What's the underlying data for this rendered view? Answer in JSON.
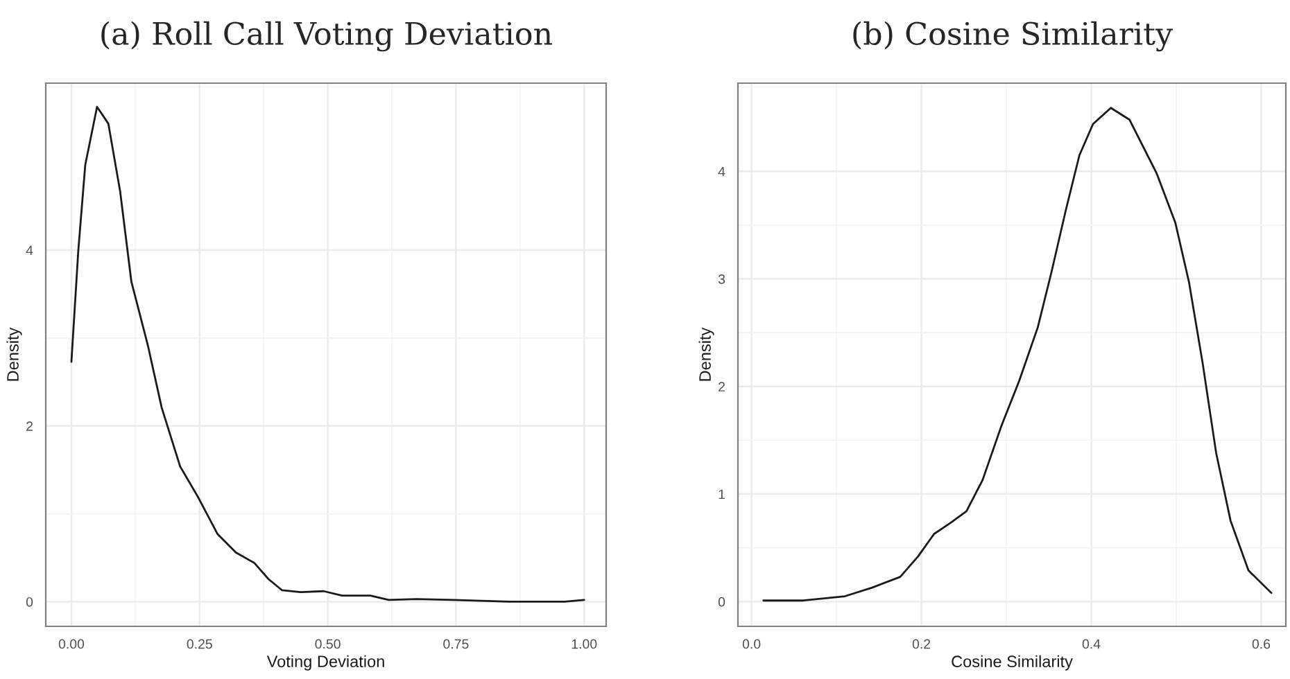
{
  "chart_data": [
    {
      "type": "line",
      "title": "(a) Roll Call Voting Deviation",
      "xlabel": "Voting Deviation",
      "ylabel": "Density",
      "series": [
        {
          "color": "#1a1a1a",
          "x": [
            0,
            0.0135,
            0.027,
            0.05,
            0.072,
            0.095,
            0.117,
            0.149,
            0.176,
            0.212,
            0.248,
            0.285,
            0.321,
            0.357,
            0.384,
            0.411,
            0.447,
            0.492,
            0.528,
            0.583,
            0.619,
            0.673,
            0.745,
            0.854,
            0.962,
            1.0
          ],
          "values": [
            2.73,
            4.0,
            4.97,
            5.63,
            5.44,
            4.67,
            3.64,
            2.92,
            2.21,
            1.54,
            1.18,
            0.77,
            0.56,
            0.44,
            0.26,
            0.13,
            0.11,
            0.12,
            0.07,
            0.07,
            0.02,
            0.03,
            0.02,
            0.0,
            0.0,
            0.02
          ]
        }
      ],
      "xlim": [
        -0.05,
        1.043
      ],
      "ylim": [
        -0.28,
        5.9
      ],
      "xticks": [
        {
          "value": 0,
          "label": "0.00"
        },
        {
          "value": 0.25,
          "label": "0.25"
        },
        {
          "value": 0.5,
          "label": "0.50"
        },
        {
          "value": 0.75,
          "label": "0.75"
        },
        {
          "value": 1,
          "label": "1.00"
        }
      ],
      "yticks": [
        0,
        2,
        4
      ],
      "grid": true
    },
    {
      "type": "line",
      "title": "(b) Cosine Similarity",
      "xlabel": "Cosine Similarity",
      "ylabel": "Density",
      "series": [
        {
          "color": "#1a1a1a",
          "x": [
            0.014,
            0.061,
            0.11,
            0.142,
            0.175,
            0.196,
            0.215,
            0.234,
            0.253,
            0.272,
            0.294,
            0.315,
            0.337,
            0.353,
            0.37,
            0.386,
            0.402,
            0.423,
            0.445,
            0.477,
            0.499,
            0.515,
            0.531,
            0.547,
            0.564,
            0.585,
            0.612
          ],
          "values": [
            0.01,
            0.01,
            0.05,
            0.13,
            0.23,
            0.42,
            0.63,
            0.73,
            0.84,
            1.13,
            1.63,
            2.05,
            2.55,
            3.06,
            3.64,
            4.15,
            4.44,
            4.59,
            4.48,
            3.98,
            3.52,
            2.97,
            2.22,
            1.38,
            0.75,
            0.29,
            0.08
          ]
        }
      ],
      "xlim": [
        -0.016,
        0.629
      ],
      "ylim": [
        -0.23,
        4.82
      ],
      "xticks": [
        {
          "value": 0,
          "label": "0.0"
        },
        {
          "value": 0.2,
          "label": "0.2"
        },
        {
          "value": 0.4,
          "label": "0.4"
        },
        {
          "value": 0.6,
          "label": "0.6"
        }
      ],
      "yticks": [
        0,
        1,
        2,
        3,
        4
      ],
      "grid": true
    }
  ]
}
